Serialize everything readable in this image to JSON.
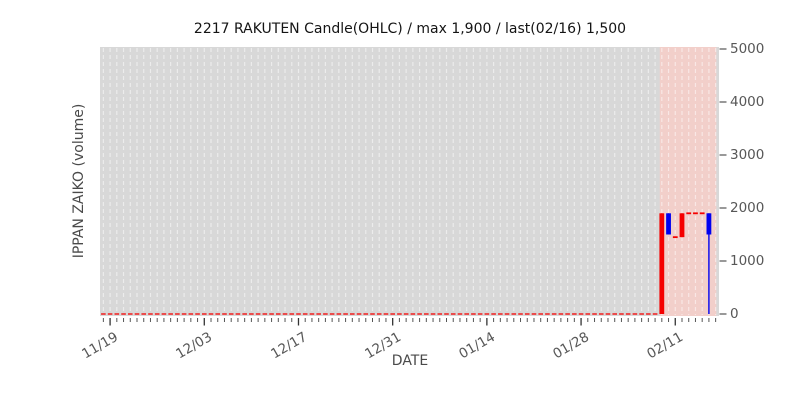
{
  "chart_data": {
    "type": "candlestick",
    "title": "2217 RAKUTEN Candle(OHLC) / max 1,900 / last(02/16) 1,500",
    "xlabel": "DATE",
    "ylabel": "IPPAN ZAIKO (volume)",
    "ylim": [
      0,
      5000
    ],
    "yticks": [
      0,
      1000,
      2000,
      3000,
      4000,
      5000
    ],
    "x_axis": {
      "total_day_slots": 92,
      "minor_tick_every_day": true,
      "major_ticks": [
        {
          "label": "11/19",
          "day_index": 1
        },
        {
          "label": "12/03",
          "day_index": 15
        },
        {
          "label": "12/17",
          "day_index": 29
        },
        {
          "label": "12/31",
          "day_index": 43
        },
        {
          "label": "01/14",
          "day_index": 57
        },
        {
          "label": "01/28",
          "day_index": 71
        },
        {
          "label": "02/11",
          "day_index": 85
        }
      ]
    },
    "grid": {
      "vertical_dashed_daily": true,
      "horizontal": false
    },
    "legend": null,
    "highlight_span": {
      "from_day_index": 82.7,
      "to_day_index": 91.1
    },
    "zero_value_period": {
      "start_date": "11/18",
      "end_date": "02/08",
      "start_day_index": 0,
      "end_day_index": 82,
      "value": 0
    },
    "candles": [
      {
        "date": "02/09",
        "day_index": 83,
        "open": 0,
        "high": 1900,
        "low": 0,
        "close": 1900,
        "direction": "up"
      },
      {
        "date": "02/10",
        "day_index": 84,
        "open": 1900,
        "high": 1900,
        "low": 1500,
        "close": 1500,
        "direction": "down"
      },
      {
        "date": "02/11",
        "day_index": 85,
        "open": 1450,
        "high": 1450,
        "low": 1450,
        "close": 1450,
        "direction": "up"
      },
      {
        "date": "02/12",
        "day_index": 86,
        "open": 1450,
        "high": 1900,
        "low": 1450,
        "close": 1900,
        "direction": "up"
      },
      {
        "date": "02/13",
        "day_index": 87,
        "open": 1900,
        "high": 1900,
        "low": 1900,
        "close": 1900,
        "direction": "up"
      },
      {
        "date": "02/14",
        "day_index": 88,
        "open": 1900,
        "high": 1900,
        "low": 1900,
        "close": 1900,
        "direction": "up"
      },
      {
        "date": "02/15",
        "day_index": 89,
        "open": 1900,
        "high": 1900,
        "low": 1900,
        "close": 1900,
        "direction": "up"
      },
      {
        "date": "02/16",
        "day_index": 90,
        "open": 1900,
        "high": 1900,
        "low": 0,
        "close": 1500,
        "direction": "down"
      }
    ],
    "max_value": 1900,
    "last": {
      "date": "02/16",
      "value": 1500
    },
    "colors": {
      "up": "#f50000",
      "down": "#0000f0",
      "zero_dash": "#ee3333",
      "plot_bg": "#d8d8d8",
      "highlight_bg": "#f2cfca",
      "figure_bg": "#ffffff",
      "grid_dash": "#ffffff",
      "tick_mark": "#555555",
      "tick_text": "#575757",
      "axis_text": "#4a4a4a",
      "title_text": "#141414"
    }
  }
}
